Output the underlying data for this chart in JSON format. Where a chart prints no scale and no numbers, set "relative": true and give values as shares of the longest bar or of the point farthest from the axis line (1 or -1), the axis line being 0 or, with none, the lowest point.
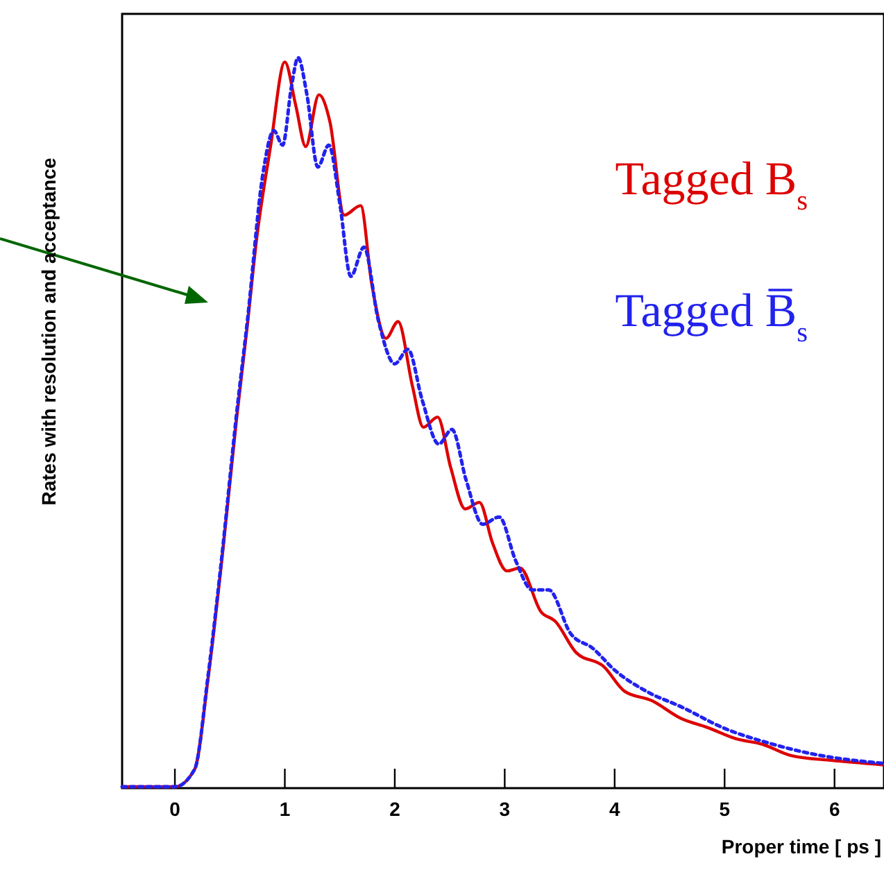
{
  "chart_data": {
    "type": "line",
    "relative": true,
    "xlabel": "Proper time [ ps ]",
    "ylabel": "Rates with resolution and acceptance",
    "xlim": [
      -0.48,
      6.45
    ],
    "xticks": [
      0,
      1,
      2,
      3,
      4,
      5,
      6
    ],
    "legend": "top right",
    "grid": false,
    "marker": "none",
    "series": [
      {
        "name": "Tagged B$_{s}$",
        "color": "#dd0000",
        "line_style": "solid",
        "x": [
          -0.48,
          -0.33,
          0,
          0.18,
          0.3,
          0.43,
          0.56,
          0.66,
          0.74,
          0.87,
          1.0,
          1.1,
          1.19,
          1.31,
          1.41,
          1.54,
          1.69,
          1.79,
          1.92,
          2.03,
          2.16,
          2.26,
          2.39,
          2.51,
          2.64,
          2.77,
          2.89,
          3.02,
          3.14,
          3.33,
          3.46,
          3.65,
          3.9,
          4.09,
          4.34,
          4.6,
          4.85,
          5.1,
          5.35,
          5.6,
          5.98,
          6.45
        ],
        "values": [
          0,
          0,
          0,
          0.024,
          0.146,
          0.315,
          0.503,
          0.634,
          0.747,
          0.878,
          0.994,
          0.934,
          0.878,
          0.949,
          0.912,
          0.784,
          0.797,
          0.69,
          0.615,
          0.638,
          0.55,
          0.493,
          0.507,
          0.437,
          0.381,
          0.39,
          0.334,
          0.296,
          0.3,
          0.24,
          0.227,
          0.184,
          0.165,
          0.131,
          0.118,
          0.094,
          0.081,
          0.066,
          0.058,
          0.043,
          0.036,
          0.03
        ]
      },
      {
        "name": "Tagged B̅$_{s}$",
        "color": "#2222ee",
        "line_style": "dotted",
        "x": [
          -0.48,
          -0.33,
          0,
          0.18,
          0.3,
          0.43,
          0.56,
          0.66,
          0.8,
          0.9,
          0.98,
          1.06,
          1.12,
          1.2,
          1.3,
          1.4,
          1.5,
          1.6,
          1.72,
          1.85,
          2.0,
          2.12,
          2.25,
          2.4,
          2.52,
          2.65,
          2.8,
          2.95,
          3.1,
          3.25,
          3.4,
          3.6,
          3.8,
          4.0,
          4.3,
          4.6,
          5.0,
          5.4,
          5.8,
          6.45
        ],
        "values": [
          0,
          0,
          0,
          0.024,
          0.15,
          0.32,
          0.51,
          0.64,
          0.84,
          0.9,
          0.88,
          0.96,
          1.0,
          0.95,
          0.85,
          0.88,
          0.8,
          0.7,
          0.74,
          0.64,
          0.58,
          0.6,
          0.53,
          0.47,
          0.49,
          0.42,
          0.36,
          0.37,
          0.31,
          0.27,
          0.27,
          0.21,
          0.19,
          0.16,
          0.13,
          0.11,
          0.08,
          0.06,
          0.045,
          0.032
        ]
      }
    ]
  }
}
